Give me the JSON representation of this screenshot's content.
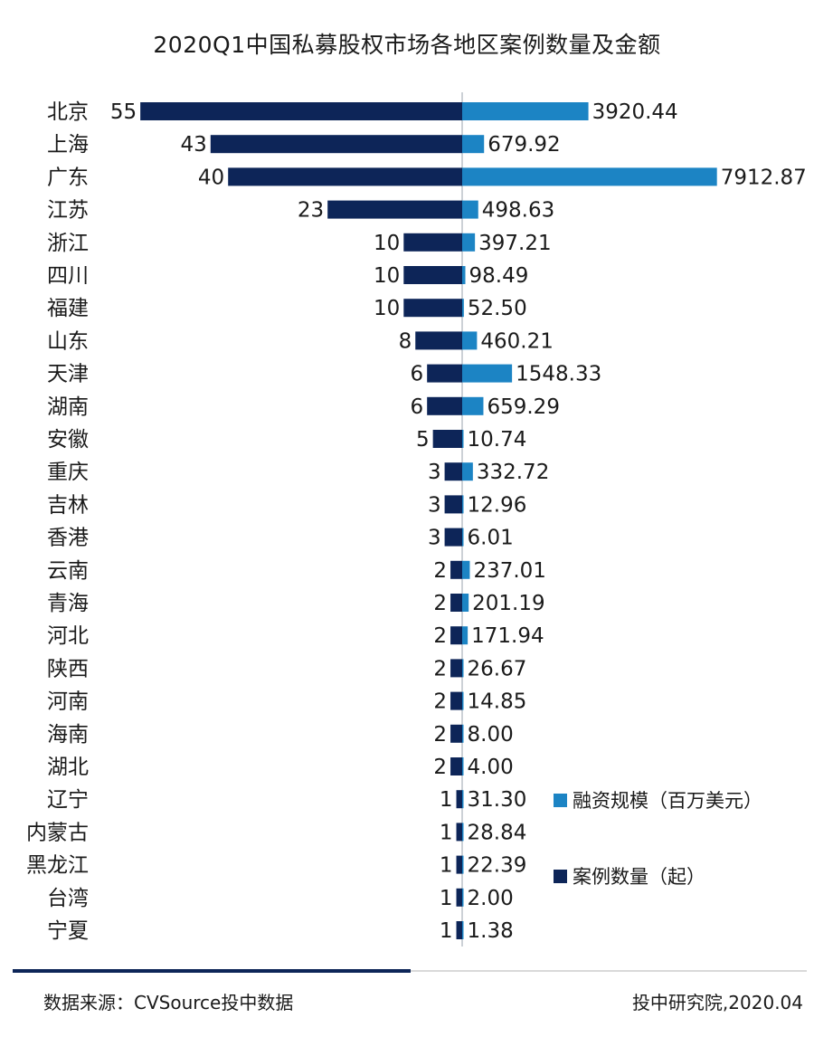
{
  "colors": {
    "count": "#0d2558",
    "amount": "#1c84c4",
    "axis": "#9aa3ad",
    "text": "#1a1a1a"
  },
  "chart_data": {
    "type": "bar",
    "title": "2020Q1中国私募股权市场各地区案例数量及金额",
    "orientation": "horizontal-diverging",
    "categories": [
      "北京",
      "上海",
      "广东",
      "江苏",
      "浙江",
      "四川",
      "福建",
      "山东",
      "天津",
      "湖南",
      "安徽",
      "重庆",
      "吉林",
      "香港",
      "云南",
      "青海",
      "河北",
      "陕西",
      "河南",
      "海南",
      "湖北",
      "辽宁",
      "内蒙古",
      "黑龙江",
      "台湾",
      "宁夏"
    ],
    "series": [
      {
        "name": "案例数量（起）",
        "side": "left",
        "values": [
          55,
          43,
          40,
          23,
          10,
          10,
          10,
          8,
          6,
          6,
          5,
          3,
          3,
          3,
          2,
          2,
          2,
          2,
          2,
          2,
          2,
          1,
          1,
          1,
          1,
          1
        ],
        "labels": [
          "55",
          "43",
          "40",
          "23",
          "10",
          "10",
          "10",
          "8",
          "6",
          "6",
          "5",
          "3",
          "3",
          "3",
          "2",
          "2",
          "2",
          "2",
          "2",
          "2",
          "2",
          "1",
          "1",
          "1",
          "1",
          "1"
        ]
      },
      {
        "name": "融资规模（百万美元）",
        "side": "right",
        "values": [
          3920.44,
          679.92,
          7912.87,
          498.63,
          397.21,
          98.49,
          52.5,
          460.21,
          1548.33,
          659.29,
          10.74,
          332.72,
          12.96,
          6.01,
          237.01,
          201.19,
          171.94,
          26.67,
          14.85,
          8.0,
          4.0,
          31.3,
          28.84,
          22.39,
          2.0,
          1.38
        ],
        "labels": [
          "3920.44",
          "679.92",
          "7912.87",
          "498.63",
          "397.21",
          "98.49",
          "52.50",
          "460.21",
          "1548.33",
          "659.29",
          "10.74",
          "332.72",
          "12.96",
          "6.01",
          "237.01",
          "201.19",
          "171.94",
          "26.67",
          "14.85",
          "8.00",
          "4.00",
          "31.30",
          "28.84",
          "22.39",
          "2.00",
          "1.38"
        ]
      }
    ],
    "legend_position": "bottom-right",
    "grid": false
  },
  "footer": {
    "source": "数据来源：CVSource投中数据",
    "credit": "投中研究院,2020.04"
  }
}
